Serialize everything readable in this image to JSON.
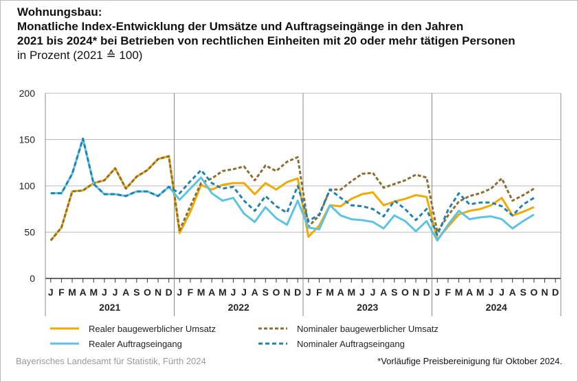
{
  "chart_data": {
    "type": "line",
    "title_lines": [
      "Wohnungsbau:",
      "Monatliche Index-Entwicklung der Umsätze und Auftragseingänge in den Jahren",
      "2021 bis 2024* bei Betrieben von rechtlichen Einheiten mit 20 oder mehr tätigen Personen"
    ],
    "subtitle": "in Prozent (2021 ≙ 100)",
    "ylim": [
      0,
      200
    ],
    "yticks": [
      0,
      50,
      100,
      150,
      200
    ],
    "months": [
      "J",
      "F",
      "M",
      "A",
      "M",
      "J",
      "J",
      "A",
      "S",
      "O",
      "N",
      "D"
    ],
    "years": [
      "2021",
      "2022",
      "2023",
      "2024"
    ],
    "grid": true,
    "legend_placement": "bottom",
    "series": [
      {
        "name": "Realer baugewerblicher Umsatz",
        "color": "#f2a900",
        "style": "solid",
        "values": [
          41,
          55,
          94,
          95,
          103,
          106,
          119,
          97,
          110,
          117,
          129,
          132,
          49,
          72,
          101,
          96,
          101,
          103,
          103,
          91,
          103,
          96,
          104,
          108,
          45,
          57,
          79,
          78,
          86,
          91,
          93,
          79,
          83,
          86,
          90,
          88,
          42,
          56,
          69,
          73,
          75,
          79,
          87,
          68,
          72,
          77
        ]
      },
      {
        "name": "Nominaler baugewerblicher Umsatz",
        "color": "#8c6d32",
        "style": "dotted",
        "values": [
          41,
          55,
          94,
          95,
          103,
          106,
          119,
          97,
          110,
          117,
          129,
          132,
          52,
          78,
          103,
          108,
          116,
          118,
          121,
          106,
          122,
          116,
          126,
          131,
          56,
          68,
          96,
          96,
          105,
          113,
          114,
          98,
          102,
          106,
          112,
          109,
          50,
          68,
          83,
          89,
          92,
          97,
          108,
          84,
          90,
          97
        ]
      },
      {
        "name": "Realer Auftragseingang",
        "color": "#5bc3e6",
        "style": "solid",
        "values": [
          92,
          92,
          113,
          151,
          102,
          91,
          91,
          89,
          94,
          94,
          89,
          99,
          85,
          97,
          109,
          92,
          84,
          87,
          70,
          61,
          77,
          65,
          58,
          84,
          55,
          53,
          79,
          68,
          64,
          63,
          61,
          54,
          68,
          62,
          51,
          62,
          41,
          58,
          73,
          64,
          66,
          67,
          64,
          54,
          62,
          69
        ]
      },
      {
        "name": "Nominaler Auftragseingang",
        "color": "#1f82b5",
        "style": "dashed",
        "values": [
          92,
          92,
          113,
          151,
          102,
          91,
          91,
          89,
          94,
          94,
          89,
          99,
          92,
          105,
          117,
          103,
          97,
          99,
          84,
          73,
          89,
          78,
          71,
          100,
          62,
          69,
          96,
          87,
          79,
          78,
          75,
          67,
          84,
          75,
          63,
          75,
          47,
          74,
          92,
          80,
          82,
          82,
          78,
          68,
          80,
          87
        ]
      }
    ]
  },
  "footer": {
    "source": "Bayerisches Landesamt für Statistik, Fürth 2024",
    "note": "*Vorläufige Preisbereinigung für Oktober 2024."
  }
}
